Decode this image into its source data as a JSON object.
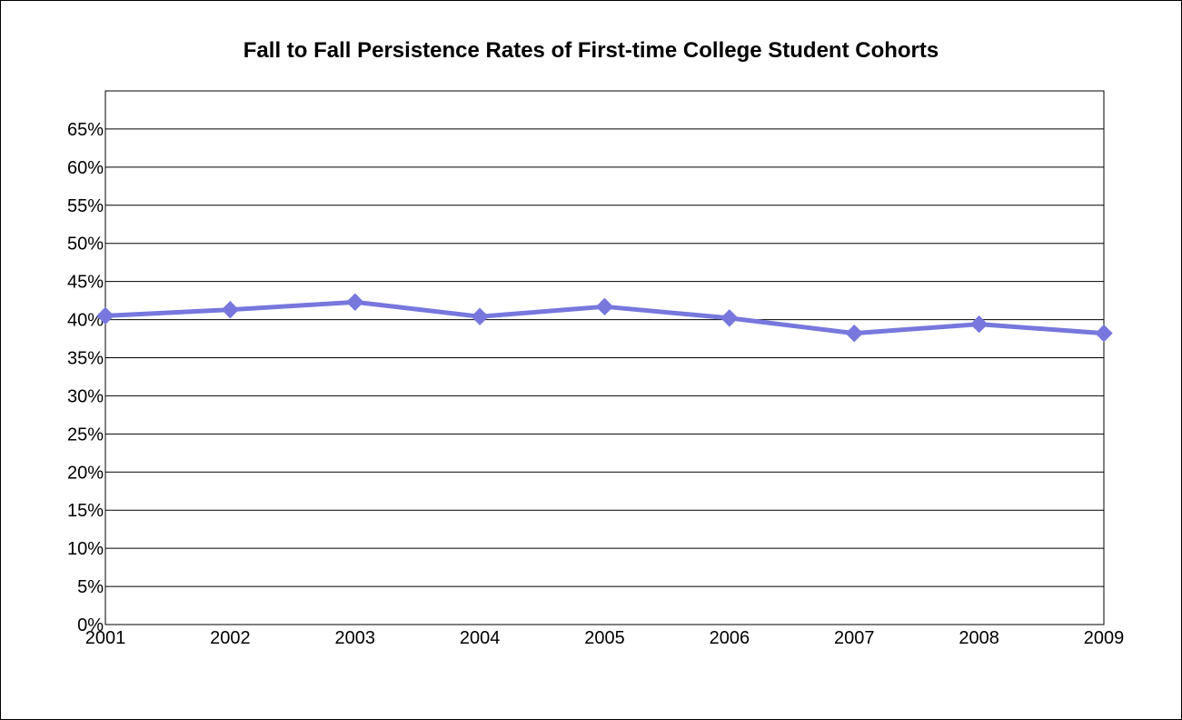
{
  "chart_data": {
    "type": "line",
    "title": "Fall to Fall Persistence Rates of First-time College Student Cohorts",
    "xlabel": "",
    "ylabel": "",
    "categories": [
      "2001",
      "2002",
      "2003",
      "2004",
      "2005",
      "2006",
      "2007",
      "2008",
      "2009"
    ],
    "series": [
      {
        "values": [
          0.405,
          0.413,
          0.423,
          0.404,
          0.417,
          0.402,
          0.382,
          0.394,
          0.382
        ]
      }
    ],
    "ylim": [
      0,
      0.7
    ],
    "yticks": [
      0,
      0.05,
      0.1,
      0.15,
      0.2,
      0.25,
      0.3,
      0.35,
      0.4,
      0.45,
      0.5,
      0.55,
      0.6,
      0.65
    ],
    "ytick_labels": [
      "0%",
      "5%",
      "10%",
      "15%",
      "20%",
      "25%",
      "30%",
      "35%",
      "40%",
      "45%",
      "50%",
      "55%",
      "60%",
      "65%"
    ],
    "grid": true,
    "legend": "none",
    "line_color": "#7777dd",
    "marker": "diamond"
  }
}
